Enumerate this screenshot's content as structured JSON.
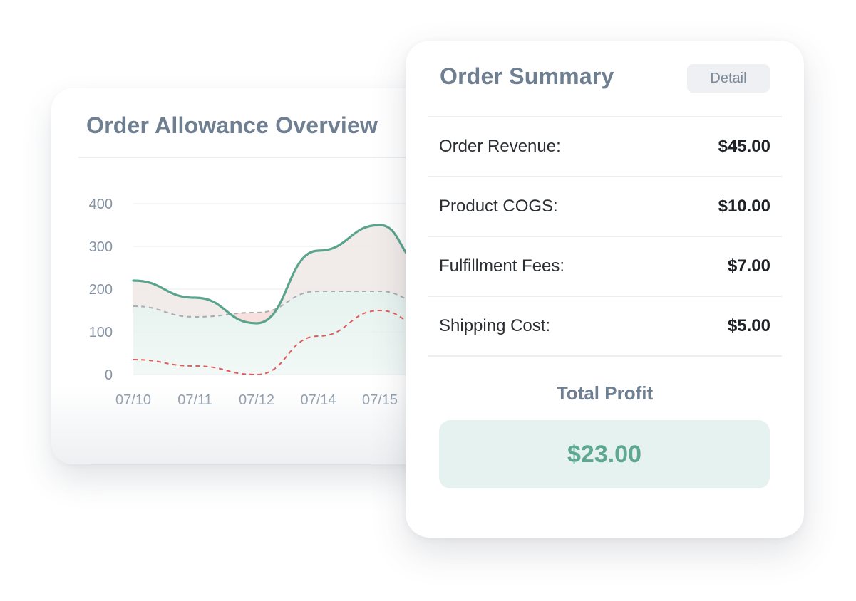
{
  "chart_card": {
    "title": "Order Allowance Overview"
  },
  "chart_data": {
    "type": "area",
    "title": "Order Allowance Overview",
    "xlabel": "",
    "ylabel": "",
    "categories": [
      "07/10",
      "07/11",
      "07/12",
      "07/14",
      "07/15"
    ],
    "y_ticks": [
      "400",
      "300",
      "200",
      "100",
      "0"
    ],
    "ylim": [
      0,
      400
    ],
    "grid": true,
    "legend": "none",
    "series": [
      {
        "style": "solid",
        "color": "#5aa38c",
        "values": [
          220,
          180,
          120,
          290,
          350
        ]
      },
      {
        "style": "dashed",
        "color": "#a8adb3",
        "values": [
          160,
          135,
          145,
          195,
          195
        ]
      },
      {
        "style": "dashed",
        "color": "#e25c5c",
        "values": [
          35,
          20,
          0,
          90,
          150
        ]
      }
    ],
    "fills": {
      "gain": "#fadcdc",
      "base": "#e2f1ec"
    }
  },
  "summary": {
    "title": "Order Summary",
    "detail_label": "Detail",
    "rows": [
      {
        "label": "Order Revenue:",
        "value": "$45.00"
      },
      {
        "label": "Product COGS:",
        "value": "$10.00"
      },
      {
        "label": "Fulfillment Fees:",
        "value": "$7.00"
      },
      {
        "label": "Shipping Cost:",
        "value": "$5.00"
      }
    ],
    "total_label": "Total Profit",
    "total_value": "$23.00"
  }
}
